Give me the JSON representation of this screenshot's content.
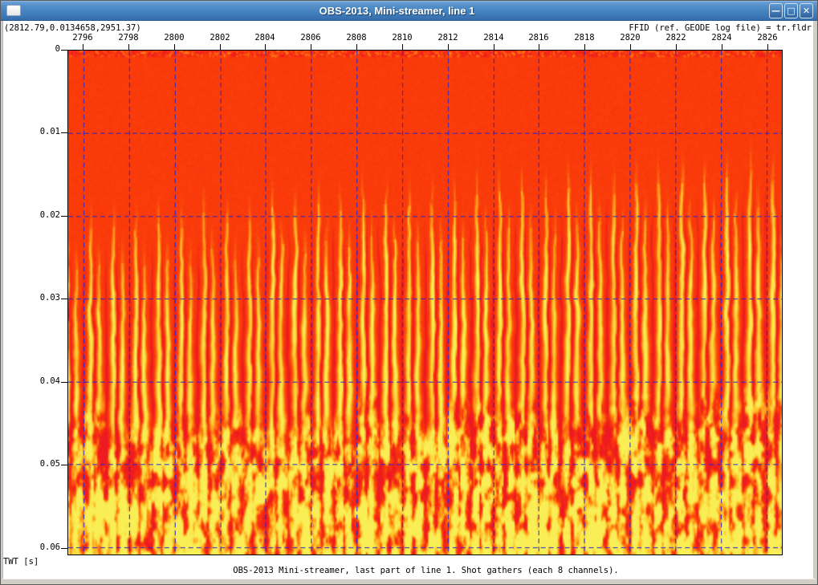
{
  "window": {
    "title": "OBS-2013, Mini-streamer, line 1",
    "icon": "window-menu",
    "buttons": [
      {
        "name": "minimize",
        "glyph": "—"
      },
      {
        "name": "maximize",
        "glyph": "□"
      },
      {
        "name": "close",
        "glyph": "✕"
      }
    ],
    "titlebar_colors": {
      "top": "#71a5d9",
      "bottom": "#356aa6",
      "text": "#ffffff"
    }
  },
  "header": {
    "readout": "(2812.79,0.0134658,2951.37)",
    "x_axis_title": "FFID (ref. GEODE log file) = tr.fldr"
  },
  "footer": {
    "y_axis_label": "TWT [s]",
    "caption": "OBS-2013 Mini-streamer, last part of line 1. Shot gathers (each 8 channels)."
  },
  "chart_data": {
    "type": "heatmap",
    "title": "OBS-2013 Mini-streamer, last part of line 1. Shot gathers (each 8 channels).",
    "xlabel": "FFID (ref. GEODE log file) = tr.fldr",
    "ylabel": "TWT [s]",
    "x_ticks": [
      2796,
      2798,
      2800,
      2802,
      2804,
      2806,
      2808,
      2810,
      2812,
      2814,
      2816,
      2818,
      2820,
      2822,
      2824,
      2826
    ],
    "y_tick_values": [
      0,
      0.01,
      0.02,
      0.03,
      0.04,
      0.05,
      0.06
    ],
    "y_tick_labels": [
      "0",
      "0.01",
      "0.02",
      "0.03",
      "0.04",
      "0.05",
      "0.06"
    ],
    "x_range": [
      2795.33,
      2826.68
    ],
    "y_range": [
      0,
      0.0609
    ],
    "y_axis_direction": "down",
    "grid": {
      "style": "dashed",
      "color": "#2626cd",
      "dash": [
        6,
        4
      ]
    },
    "traces_per_shot": 8,
    "content_summary": [
      {
        "twt_range": [
          0,
          0.015
        ],
        "appearance": "uniform orange-red background (low amplitude), thin darker mottled band directly under the top axis"
      },
      {
        "twt_range": [
          0.013,
          0.03
        ],
        "appearance": "first-arrival energy: thin wavy yellow-orange vertical streaks, two per shot gather; onset gets shallower toward higher FFID (right side ~0.015 s, left side ~0.021 s)"
      },
      {
        "twt_range": [
          0.03,
          0.042
        ],
        "appearance": "strong yellow vertical streaks separated by thin dark-red trace/gather boundary lines on orange-red background"
      },
      {
        "twt_range": [
          0.042,
          0.0609
        ],
        "appearance": "high-amplitude chaotic coda: irregular crimson-red and bright-yellow blobs with orange transitions, vertical striping at gather boundaries"
      }
    ],
    "colormap": {
      "low_negative": "#ee1a22",
      "zero": "#fa3a0a",
      "mid": "#ff8d15",
      "high": "#ffc72e",
      "peak": "#f9ee55"
    },
    "render": {
      "seed": 11,
      "onset_s": [
        0.0212,
        0.015
      ],
      "onset_jitter_s": 0.0024,
      "streak_centers": [
        0.3,
        0.68
      ],
      "streak_stagger_s": 0.0045,
      "neg_centers": [
        0.0,
        0.45
      ],
      "chaos_start_s": [
        0.0428,
        0.0406
      ],
      "chaos_ramp_s": 0.005,
      "deep_yellow_gain": 45,
      "deep_yellow_pivot_s": 0.048
    }
  }
}
